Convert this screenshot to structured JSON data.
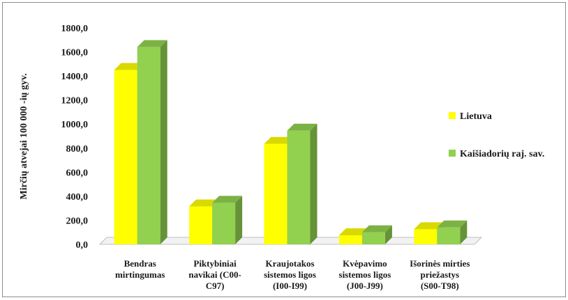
{
  "chart_data": {
    "type": "bar",
    "style": "3d-clustered",
    "ylabel": "Mirčių atvejai 100 000 -ių gyv.",
    "ylim": [
      0,
      1800
    ],
    "yticks": [
      "0,0",
      "200,0",
      "400,0",
      "600,0",
      "800,0",
      "1000,0",
      "1200,0",
      "1400,0",
      "1600,0",
      "1800,0"
    ],
    "categories": [
      [
        "Bendras",
        "mirtingumas"
      ],
      [
        "Piktybiniai",
        "navikai (C00-",
        "C97)"
      ],
      [
        "Kraujotakos",
        "sistemos ligos",
        "(I00-I99)"
      ],
      [
        "Kvėpavimo",
        "sistemos ligos",
        "(J00-J99)"
      ],
      [
        "Išorinės mirties",
        "priežastys",
        "(S00-T98)"
      ]
    ],
    "series": [
      {
        "name": "Lietuva",
        "color": "#ffff00",
        "values": [
          1450,
          315,
          835,
          75,
          125
        ]
      },
      {
        "name": "Kaišiadorių raj. sav.",
        "color": "#92d050",
        "values": [
          1640,
          345,
          945,
          100,
          140
        ]
      }
    ],
    "legend_position": "right",
    "grid": false
  }
}
